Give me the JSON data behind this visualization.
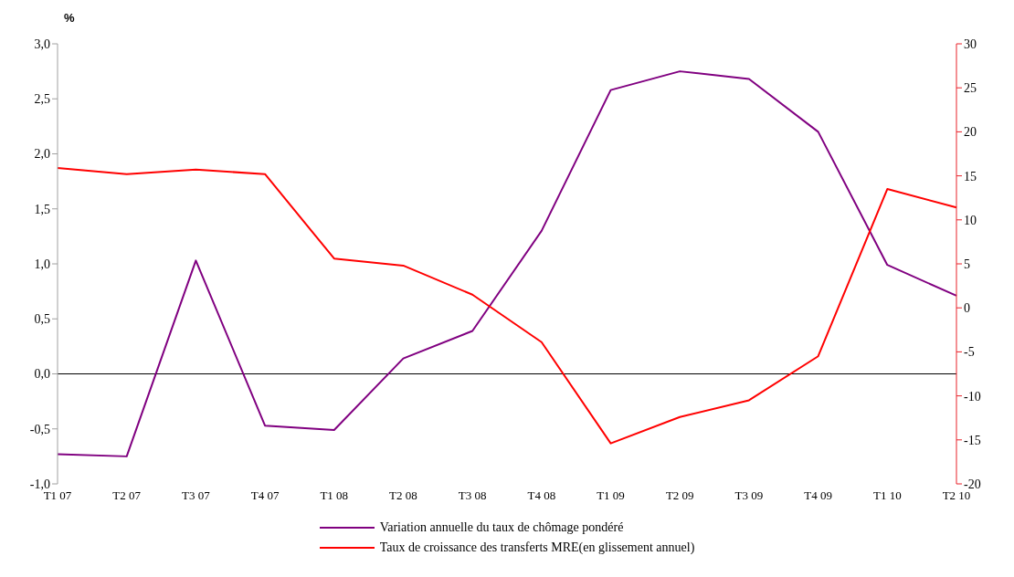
{
  "chart_data": {
    "type": "line",
    "ylabel": "%",
    "categories": [
      "T1 07",
      "T2 07",
      "T3 07",
      "T4 07",
      "T1 08",
      "T2 08",
      "T3 08",
      "T4 08",
      "T1 09",
      "T2 09",
      "T3 09",
      "T4 09",
      "T1 10",
      "T2 10"
    ],
    "series": [
      {
        "name": "Variation annuelle du taux de chômage pondéré",
        "color": "#800080",
        "values": [
          -0.73,
          -0.75,
          1.03,
          -0.47,
          -0.51,
          0.14,
          0.39,
          1.3,
          2.58,
          2.75,
          2.68,
          2.2,
          0.99,
          0.71
        ]
      },
      {
        "name": "Taux de croissance des transferts MRE(en glissement annuel)",
        "color": "#ff0000",
        "axis": "y2",
        "values": [
          15.9,
          15.2,
          15.7,
          15.2,
          5.6,
          4.8,
          1.5,
          -3.9,
          -15.4,
          -12.4,
          -10.5,
          -5.5,
          13.5,
          11.4
        ]
      }
    ],
    "ylim": [
      -1,
      3
    ],
    "yticks": [
      {
        "value": -1,
        "label": "-1,0"
      },
      {
        "value": -0.5,
        "label": "-0,5"
      },
      {
        "value": 0,
        "label": "0,0"
      },
      {
        "value": 0.5,
        "label": "0,5"
      },
      {
        "value": 1,
        "label": "1,0"
      },
      {
        "value": 1.5,
        "label": "1,5"
      },
      {
        "value": 2,
        "label": "2,0"
      },
      {
        "value": 2.5,
        "label": "2,5"
      },
      {
        "value": 3,
        "label": "3,0"
      }
    ],
    "y2lim": [
      -20,
      30
    ],
    "y2ticks": [
      -20,
      -15,
      -10,
      -5,
      0,
      5,
      10,
      15,
      20,
      25,
      30
    ],
    "ref_lines": [
      {
        "axis": "y",
        "value": 0,
        "color": "#000000"
      }
    ],
    "grid": false,
    "legend": "bottom",
    "marker": "none",
    "line_style": "solid"
  }
}
